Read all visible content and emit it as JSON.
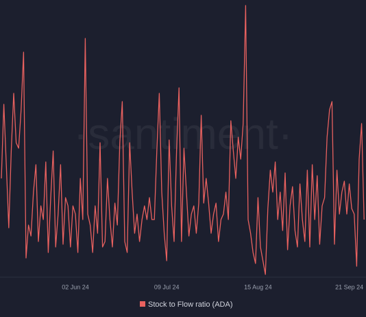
{
  "chart_data": {
    "type": "line",
    "watermark": "·santiment·",
    "categories": [
      null,
      null,
      null,
      null,
      null,
      null,
      null,
      null,
      null,
      null,
      null,
      null,
      null,
      null,
      null,
      null,
      null,
      null,
      null,
      null,
      null,
      null,
      null,
      null,
      null,
      null,
      null,
      null,
      null,
      null,
      "02 Jun 24",
      null,
      null,
      null,
      null,
      null,
      null,
      null,
      null,
      null,
      null,
      null,
      null,
      null,
      null,
      null,
      null,
      null,
      null,
      null,
      null,
      null,
      null,
      null,
      null,
      null,
      null,
      null,
      null,
      null,
      null,
      null,
      null,
      null,
      null,
      null,
      null,
      "09 Jul 24",
      null,
      null,
      null,
      null,
      null,
      null,
      null,
      null,
      null,
      null,
      null,
      null,
      null,
      null,
      null,
      null,
      null,
      null,
      null,
      null,
      null,
      null,
      null,
      null,
      null,
      null,
      null,
      null,
      null,
      null,
      null,
      null,
      null,
      null,
      null,
      null,
      "15 Aug 24",
      null,
      null,
      null,
      null,
      null,
      null,
      null,
      null,
      null,
      null,
      null,
      null,
      null,
      null,
      null,
      null,
      null,
      null,
      null,
      null,
      null,
      null,
      null,
      null,
      null,
      null,
      null,
      null,
      null,
      null,
      null,
      null,
      null,
      null,
      null,
      null,
      "21 Sep 24",
      null,
      null,
      null,
      null,
      null,
      null
    ],
    "series": [
      {
        "name": "Stock to Flow ratio (ADA)",
        "color": "#e8615f",
        "values": [
          35,
          62,
          40,
          17,
          45,
          66,
          48,
          46,
          60,
          81,
          6,
          18,
          14,
          30,
          40,
          12,
          25,
          20,
          41,
          8,
          28,
          45,
          10,
          22,
          40,
          11,
          28,
          25,
          10,
          25,
          22,
          8,
          35,
          20,
          86,
          22,
          18,
          8,
          25,
          15,
          48,
          10,
          12,
          35,
          20,
          10,
          26,
          18,
          48,
          63,
          12,
          8,
          48,
          30,
          15,
          22,
          12,
          20,
          25,
          20,
          28,
          20,
          20,
          45,
          66,
          30,
          15,
          5,
          49,
          25,
          12,
          45,
          68,
          12,
          46,
          30,
          14,
          22,
          25,
          15,
          26,
          58,
          26,
          35,
          26,
          15,
          22,
          26,
          12,
          20,
          22,
          30,
          20,
          56,
          45,
          35,
          50,
          42,
          55,
          98,
          20,
          15,
          8,
          4,
          28,
          10,
          5,
          0,
          24,
          38,
          30,
          41,
          20,
          30,
          16,
          37,
          9,
          25,
          32,
          16,
          10,
          33,
          20,
          12,
          38,
          10,
          40,
          20,
          36,
          11,
          25,
          28,
          50,
          60,
          63,
          11,
          38,
          22,
          30,
          34,
          22,
          33,
          24,
          22,
          3,
          42,
          55,
          20
        ]
      }
    ],
    "ylim": [
      0,
      100
    ]
  }
}
